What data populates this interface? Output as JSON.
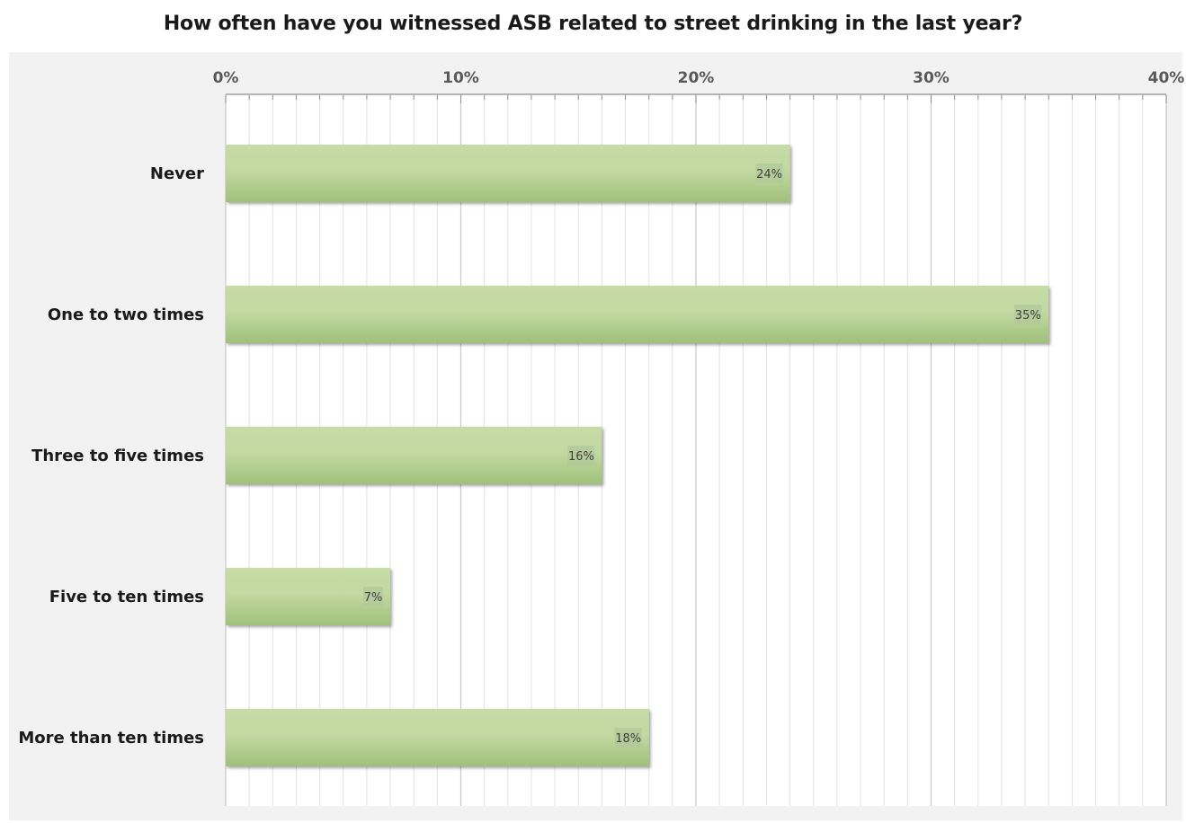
{
  "chart_data": {
    "type": "bar",
    "orientation": "horizontal",
    "title": "How often have you witnessed ASB related to street drinking in the last year?",
    "categories": [
      "Never",
      "One to two times",
      "Three to five times",
      "Five to ten times",
      "More than ten times"
    ],
    "values": [
      24,
      35,
      16,
      7,
      18
    ],
    "data_labels": [
      "24%",
      "35%",
      "16%",
      "7%",
      "18%"
    ],
    "xlim": [
      0,
      40
    ],
    "x_ticks": [
      0,
      10,
      20,
      30,
      40
    ],
    "x_tick_labels": [
      "0%",
      "10%",
      "20%",
      "30%",
      "40%"
    ],
    "x_minor_step": 1,
    "x_axis_position": "top",
    "grid": true,
    "legend": "none",
    "colors": {
      "bar_light": "#c6dba6",
      "bar_dark": "#9fc07a",
      "plot_background": "#f2f2f2",
      "major_grid": "#c8c8c8",
      "minor_grid": "#e2e2e2",
      "label_box": "#b3c99a"
    }
  }
}
